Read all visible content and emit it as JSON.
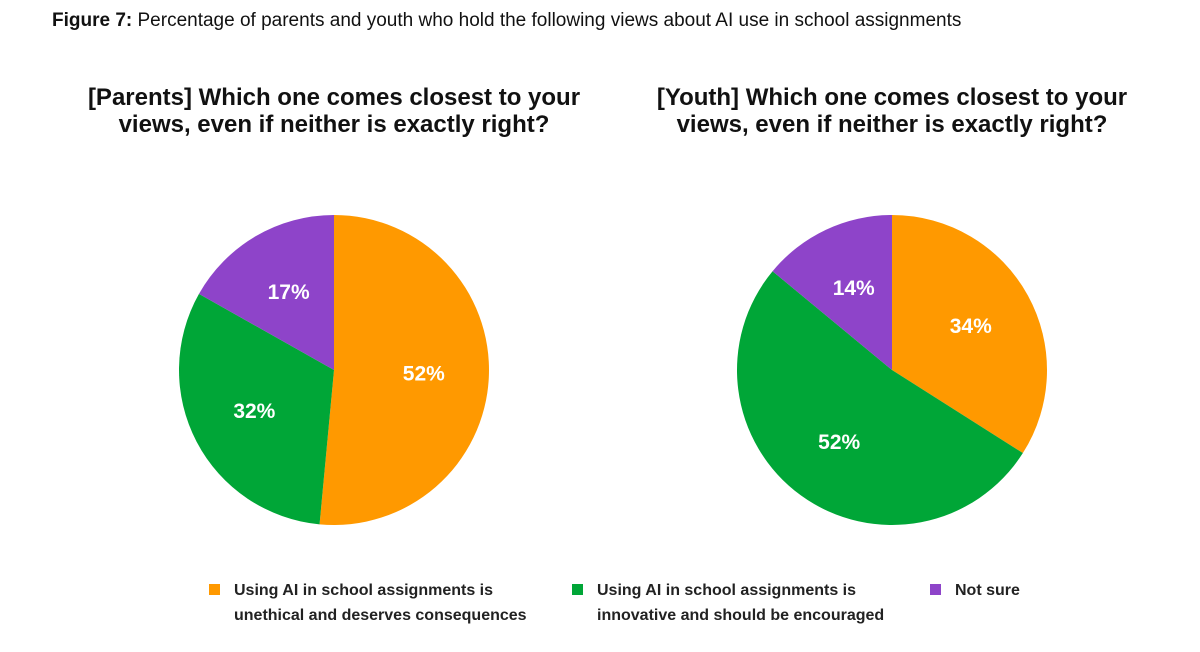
{
  "figure": {
    "lead": "Figure 7:",
    "text": " Percentage of parents and youth who hold the following views about AI use in school assignments"
  },
  "legend": [
    {
      "label_line1": "Using AI in school assignments is",
      "label_line2": "unethical and deserves consequences",
      "color": "#FF9900"
    },
    {
      "label_line1": "Using AI in school assignments is",
      "label_line2": "innovative and should be encouraged",
      "color": "#00A637"
    },
    {
      "label_line1": "Not sure",
      "label_line2": "",
      "color": "#8E44C9"
    }
  ],
  "chart_data": [
    {
      "type": "pie",
      "title_line1": "[Parents] Which one comes closest to your",
      "title_line2": "views, even if neither is exactly right?",
      "categories": [
        "Using AI in school assignments is unethical and deserves consequences",
        "Using AI in school assignments is innovative and should be encouraged",
        "Not sure"
      ],
      "values": [
        52,
        32,
        17
      ],
      "labels": [
        "52%",
        "32%",
        "17%"
      ],
      "colors": [
        "#FF9900",
        "#00A637",
        "#8E44C9"
      ],
      "start": "12 o'clock",
      "direction": "clockwise"
    },
    {
      "type": "pie",
      "title_line1": "[Youth] Which one comes closest to your",
      "title_line2": "views, even if neither is exactly right?",
      "categories": [
        "Using AI in school assignments is unethical and deserves consequences",
        "Using AI in school assignments is innovative and should be encouraged",
        "Not sure"
      ],
      "values": [
        34,
        52,
        14
      ],
      "labels": [
        "34%",
        "52%",
        "14%"
      ],
      "colors": [
        "#FF9900",
        "#00A637",
        "#8E44C9"
      ],
      "start": "12 o'clock",
      "direction": "clockwise"
    }
  ]
}
